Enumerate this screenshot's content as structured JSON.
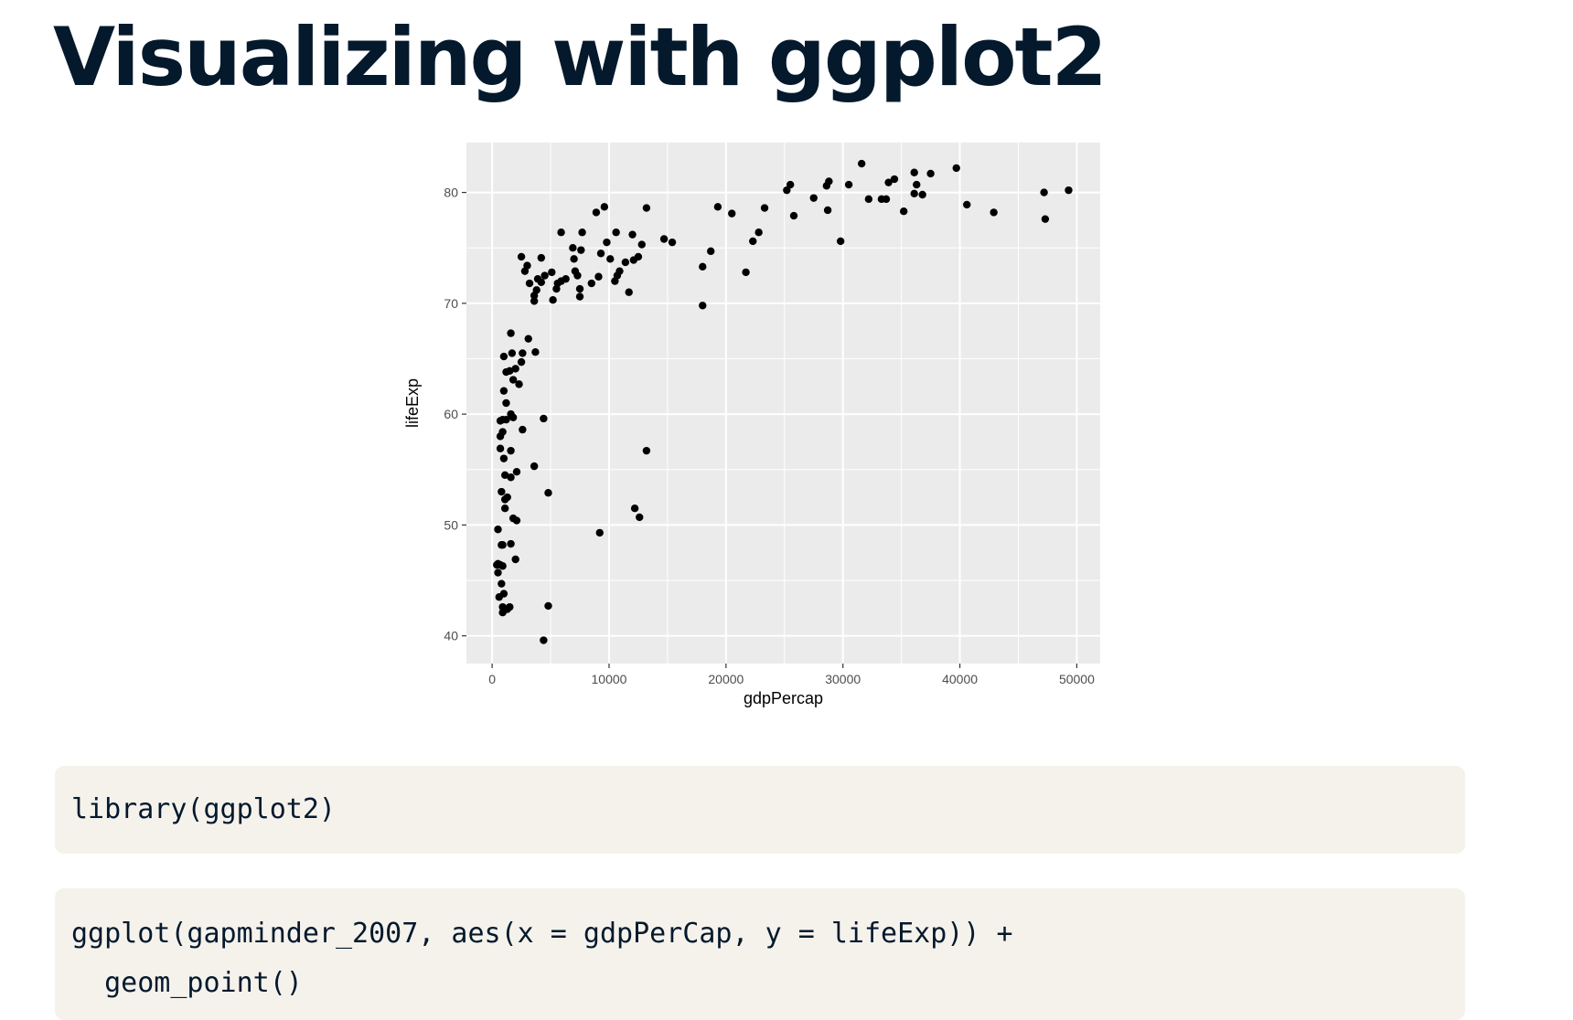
{
  "title": "Visualizing with ggplot2",
  "colors": {
    "title": "#05192d",
    "panel_bg": "#ebebeb",
    "grid": "#ffffff",
    "point": "#000000",
    "code_bg": "#f5f2ec"
  },
  "chart_data": {
    "type": "scatter",
    "xlabel": "gdpPercap",
    "ylabel": "lifeExp",
    "xlim": [
      -2200,
      52000
    ],
    "ylim": [
      37.5,
      84.5
    ],
    "xticks": [
      0,
      10000,
      20000,
      30000,
      40000,
      50000
    ],
    "xtick_labels": [
      "0",
      "10000",
      "20000",
      "30000",
      "40000",
      "50000"
    ],
    "yticks": [
      40,
      50,
      60,
      70,
      80
    ],
    "ytick_labels": [
      "40",
      "50",
      "60",
      "70",
      "80"
    ],
    "grid": true,
    "legend": "none",
    "points": [
      [
        49300,
        80.2
      ],
      [
        47200,
        80.0
      ],
      [
        47300,
        77.6
      ],
      [
        42900,
        78.2
      ],
      [
        40600,
        78.9
      ],
      [
        39700,
        82.2
      ],
      [
        37500,
        81.7
      ],
      [
        36800,
        79.8
      ],
      [
        36300,
        80.7
      ],
      [
        36100,
        81.8
      ],
      [
        36100,
        79.9
      ],
      [
        35200,
        78.3
      ],
      [
        34400,
        81.2
      ],
      [
        33900,
        80.9
      ],
      [
        33700,
        79.4
      ],
      [
        33300,
        79.4
      ],
      [
        32200,
        79.4
      ],
      [
        31600,
        82.6
      ],
      [
        30500,
        80.7
      ],
      [
        29800,
        75.6
      ],
      [
        28800,
        81.0
      ],
      [
        28600,
        80.6
      ],
      [
        28700,
        78.4
      ],
      [
        27500,
        79.5
      ],
      [
        25800,
        77.9
      ],
      [
        25500,
        80.7
      ],
      [
        25200,
        80.2
      ],
      [
        23300,
        78.6
      ],
      [
        22800,
        76.4
      ],
      [
        22300,
        75.6
      ],
      [
        21700,
        72.8
      ],
      [
        20500,
        78.1
      ],
      [
        19300,
        78.7
      ],
      [
        18700,
        74.7
      ],
      [
        18000,
        73.3
      ],
      [
        18000,
        69.8
      ],
      [
        15400,
        75.5
      ],
      [
        14700,
        75.8
      ],
      [
        13200,
        78.6
      ],
      [
        13200,
        56.7
      ],
      [
        12800,
        75.3
      ],
      [
        12600,
        50.7
      ],
      [
        12500,
        74.2
      ],
      [
        12200,
        51.5
      ],
      [
        12100,
        73.9
      ],
      [
        12000,
        76.2
      ],
      [
        11700,
        71.0
      ],
      [
        11400,
        73.7
      ],
      [
        10900,
        72.9
      ],
      [
        10700,
        72.5
      ],
      [
        10600,
        76.4
      ],
      [
        10500,
        72.0
      ],
      [
        10100,
        74.0
      ],
      [
        9800,
        75.5
      ],
      [
        9600,
        78.7
      ],
      [
        9300,
        74.5
      ],
      [
        9200,
        49.3
      ],
      [
        9100,
        72.4
      ],
      [
        8900,
        78.2
      ],
      [
        8500,
        71.8
      ],
      [
        7700,
        76.4
      ],
      [
        7600,
        74.8
      ],
      [
        7500,
        71.3
      ],
      [
        7500,
        70.6
      ],
      [
        7300,
        72.5
      ],
      [
        7100,
        72.9
      ],
      [
        7000,
        74.0
      ],
      [
        6900,
        75.0
      ],
      [
        6300,
        72.2
      ],
      [
        5900,
        76.4
      ],
      [
        5900,
        72.0
      ],
      [
        5600,
        71.8
      ],
      [
        5500,
        71.3
      ],
      [
        5200,
        70.3
      ],
      [
        5100,
        72.8
      ],
      [
        4800,
        52.9
      ],
      [
        4800,
        42.7
      ],
      [
        4500,
        72.5
      ],
      [
        4400,
        59.6
      ],
      [
        4400,
        39.6
      ],
      [
        4200,
        74.1
      ],
      [
        4200,
        71.9
      ],
      [
        3900,
        72.2
      ],
      [
        3800,
        71.2
      ],
      [
        3700,
        65.6
      ],
      [
        3600,
        70.7
      ],
      [
        3600,
        70.2
      ],
      [
        3600,
        55.3
      ],
      [
        3200,
        71.8
      ],
      [
        3100,
        66.8
      ],
      [
        3000,
        73.4
      ],
      [
        2800,
        72.9
      ],
      [
        2600,
        65.5
      ],
      [
        2600,
        58.6
      ],
      [
        2500,
        74.2
      ],
      [
        2500,
        64.7
      ],
      [
        2300,
        62.7
      ],
      [
        2100,
        54.8
      ],
      [
        2100,
        50.4
      ],
      [
        2000,
        64.1
      ],
      [
        2000,
        46.9
      ],
      [
        1800,
        63.1
      ],
      [
        1800,
        59.7
      ],
      [
        1800,
        50.6
      ],
      [
        1700,
        65.5
      ],
      [
        1600,
        67.3
      ],
      [
        1600,
        60.0
      ],
      [
        1600,
        56.7
      ],
      [
        1600,
        54.3
      ],
      [
        1600,
        48.3
      ],
      [
        1500,
        63.9
      ],
      [
        1500,
        42.6
      ],
      [
        1300,
        52.5
      ],
      [
        1300,
        42.4
      ],
      [
        1200,
        63.8
      ],
      [
        1200,
        61.0
      ],
      [
        1200,
        59.5
      ],
      [
        1100,
        54.5
      ],
      [
        1100,
        52.3
      ],
      [
        1100,
        51.5
      ],
      [
        1000,
        65.2
      ],
      [
        1000,
        62.1
      ],
      [
        1000,
        56.0
      ],
      [
        1000,
        43.8
      ],
      [
        900,
        58.4
      ],
      [
        900,
        59.5
      ],
      [
        900,
        48.2
      ],
      [
        900,
        46.3
      ],
      [
        900,
        42.6
      ],
      [
        900,
        42.1
      ],
      [
        800,
        53.0
      ],
      [
        800,
        48.2
      ],
      [
        800,
        44.7
      ],
      [
        700,
        59.4
      ],
      [
        700,
        58.0
      ],
      [
        700,
        56.9
      ],
      [
        700,
        46.4
      ],
      [
        600,
        43.5
      ],
      [
        500,
        49.6
      ],
      [
        500,
        46.5
      ],
      [
        500,
        45.7
      ],
      [
        400,
        46.4
      ]
    ]
  },
  "code_blocks": [
    {
      "lines": [
        "library(ggplot2)"
      ]
    },
    {
      "lines": [
        "ggplot(gapminder_2007, aes(x = gdpPerCap, y = lifeExp)) +",
        "  geom_point()"
      ]
    }
  ]
}
